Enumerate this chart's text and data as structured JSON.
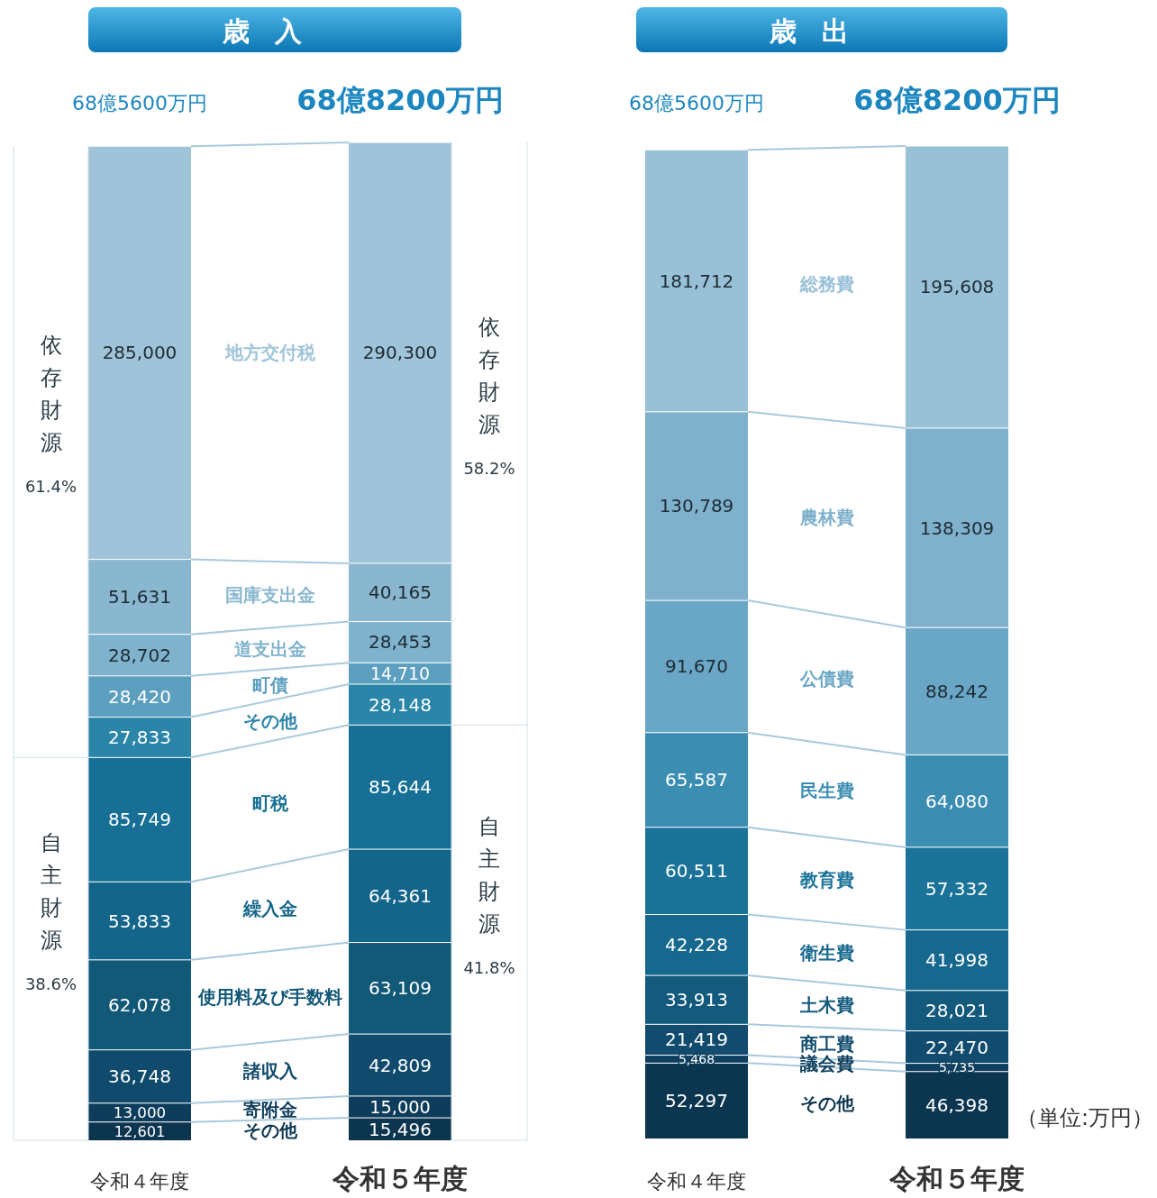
{
  "chart_data": [
    {
      "type": "bar",
      "title": "歳入",
      "stacked": true,
      "legend": false,
      "categories": [
        "令和４年度",
        "令和５年度"
      ],
      "totals": [
        "68億5600万円",
        "68億8200万円"
      ],
      "annotations": [
        "依存財源",
        "61.4%",
        "依存財源",
        "58.2%",
        "自主財源",
        "38.6%",
        "自主財源",
        "41.8%"
      ],
      "series": [
        {
          "name": "その他",
          "color": "#0c3550",
          "values": [
            12601,
            15496
          ],
          "value_labels": [
            "12,601",
            "15,496"
          ]
        },
        {
          "name": "寄附金",
          "color": "#0e3d5c",
          "values": [
            13000,
            15000
          ],
          "value_labels": [
            "13,000",
            "15,000"
          ]
        },
        {
          "name": "諸収入",
          "color": "#104a6c",
          "values": [
            36748,
            42809
          ],
          "value_labels": [
            "36,748",
            "42,809"
          ]
        },
        {
          "name": "使用料及び手数料",
          "color": "#125877",
          "values": [
            62078,
            63109
          ],
          "value_labels": [
            "62,078",
            "63,109"
          ]
        },
        {
          "name": "繰入金",
          "color": "#14658a",
          "values": [
            53833,
            64361
          ],
          "value_labels": [
            "53,833",
            "64,361"
          ]
        },
        {
          "name": "町税",
          "color": "#176f95",
          "values": [
            85749,
            85644
          ],
          "value_labels": [
            "85,749",
            "85,644"
          ]
        },
        {
          "name": "その他",
          "color": "#2a85a9",
          "values": [
            27833,
            28148
          ],
          "value_labels": [
            "27,833",
            "28,148"
          ]
        },
        {
          "name": "町債",
          "color": "#5d9fbf",
          "values": [
            28420,
            14710
          ],
          "value_labels": [
            "28,420",
            "14,710"
          ]
        },
        {
          "name": "道支出金",
          "color": "#7fb2cd",
          "values": [
            28702,
            28453
          ],
          "value_labels": [
            "28,702",
            "28,453"
          ]
        },
        {
          "name": "国庫支出金",
          "color": "#8ab7d0",
          "values": [
            51631,
            40165
          ],
          "value_labels": [
            "51,631",
            "40,165"
          ]
        },
        {
          "name": "地方交付税",
          "color": "#9fc4da",
          "values": [
            285000,
            290300
          ],
          "value_labels": [
            "285,000",
            "290,300"
          ]
        }
      ]
    },
    {
      "type": "bar",
      "title": "歳出",
      "stacked": true,
      "legend": false,
      "categories": [
        "令和４年度",
        "令和５年度"
      ],
      "totals": [
        "68億5600万円",
        "68億8200万円"
      ],
      "annotations": [
        "（単位:万円）"
      ],
      "series": [
        {
          "name": "その他",
          "color": "#0c3550",
          "values": [
            52297,
            46398
          ],
          "value_labels": [
            "52,297",
            "46,398"
          ]
        },
        {
          "name": "議会費",
          "color": "#0e3f5f",
          "values": [
            5468,
            5735
          ],
          "value_labels": [
            "5,468",
            "5,735"
          ]
        },
        {
          "name": "商工費",
          "color": "#114c6e",
          "values": [
            21419,
            22470
          ],
          "value_labels": [
            "21,419",
            "22,470"
          ]
        },
        {
          "name": "土木費",
          "color": "#135a7d",
          "values": [
            33913,
            28021
          ],
          "value_labels": [
            "33,913",
            "28,021"
          ]
        },
        {
          "name": "衛生費",
          "color": "#16688e",
          "values": [
            42228,
            41998
          ],
          "value_labels": [
            "42,228",
            "41,998"
          ]
        },
        {
          "name": "教育費",
          "color": "#1b7399",
          "values": [
            60511,
            57332
          ],
          "value_labels": [
            "60,511",
            "57,332"
          ]
        },
        {
          "name": "民生費",
          "color": "#3b8db2",
          "values": [
            65587,
            64080
          ],
          "value_labels": [
            "65,587",
            "64,080"
          ]
        },
        {
          "name": "公債費",
          "color": "#6aa6c5",
          "values": [
            91670,
            88242
          ],
          "value_labels": [
            "91,670",
            "88,242"
          ]
        },
        {
          "name": "農林費",
          "color": "#7fb1cd",
          "values": [
            130789,
            138309
          ],
          "value_labels": [
            "130,789",
            "138,309"
          ]
        },
        {
          "name": "総務費",
          "color": "#98c1d8",
          "values": [
            181712,
            195608
          ],
          "value_labels": [
            "181,712",
            "195,608"
          ]
        }
      ]
    }
  ]
}
